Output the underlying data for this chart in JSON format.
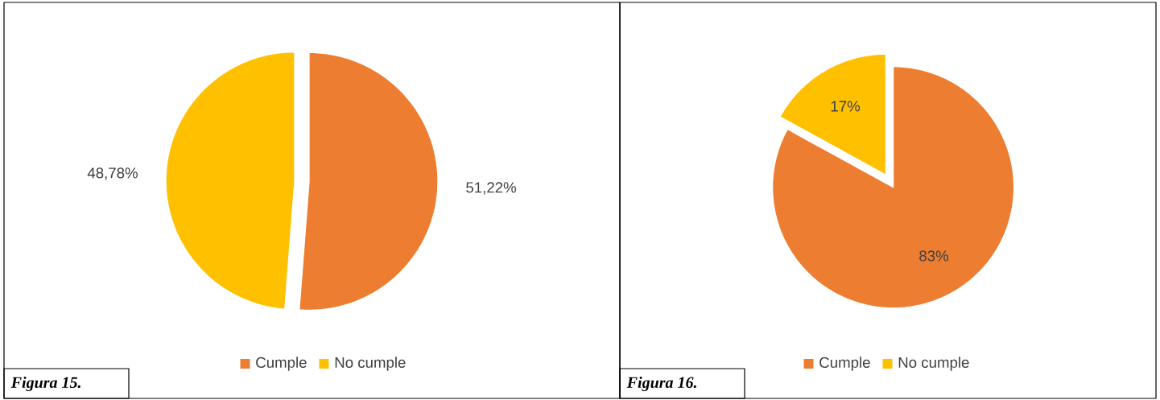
{
  "chart_data": [
    {
      "type": "pie",
      "categories": [
        "Cumple",
        "No cumple"
      ],
      "values": [
        51.22,
        48.78
      ],
      "colors": [
        "#ed7d31",
        "#ffc000"
      ],
      "value_labels": [
        "51,22%",
        "48,78%"
      ],
      "legend": "bottom",
      "annotations": [
        "Figura 15."
      ]
    },
    {
      "type": "pie",
      "categories": [
        "Cumple",
        "No cumple"
      ],
      "values": [
        83,
        17
      ],
      "colors": [
        "#ed7d31",
        "#ffc000"
      ],
      "value_labels": [
        "83%",
        "17%"
      ],
      "legend": "bottom",
      "annotations": [
        "Figura 16."
      ]
    }
  ]
}
